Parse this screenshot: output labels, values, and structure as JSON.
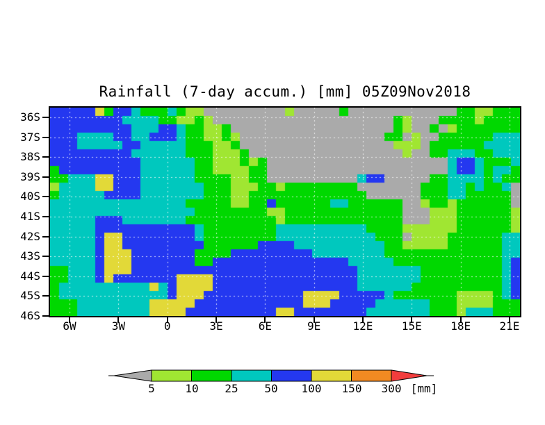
{
  "title": "Rainfall (7-day accum.) [mm] 05Z09Nov2018",
  "map": {
    "y_axis": {
      "labels": [
        "36S",
        "37S",
        "38S",
        "39S",
        "40S",
        "41S",
        "42S",
        "43S",
        "44S",
        "45S",
        "46S"
      ]
    },
    "x_axis": {
      "labels": [
        "6W",
        "3W",
        "0",
        "3E",
        "6E",
        "9E",
        "12E",
        "15E",
        "18E",
        "21E"
      ]
    }
  },
  "colorbar": {
    "labels": [
      "5",
      "10",
      "25",
      "50",
      "100",
      "150",
      "300"
    ],
    "unit": "[mm]",
    "segment_colors": [
      "#a0e632",
      "#00d800",
      "#00c8be",
      "#2438f0",
      "#e2d938",
      "#f28a22"
    ],
    "below_min_color": "#aaaaaa",
    "above_max_color": "#f23d3d"
  },
  "chart_data": {
    "type": "heatmap",
    "title": "Rainfall (7-day accum.) [mm] 05Z09Nov2018",
    "valid_time": "05Z09Nov2018",
    "units": "mm",
    "lat_ticks": [
      "36S",
      "37S",
      "38S",
      "39S",
      "40S",
      "41S",
      "42S",
      "43S",
      "44S",
      "45S",
      "46S"
    ],
    "lon_ticks": [
      "6W",
      "3W",
      "0",
      "3E",
      "6E",
      "9E",
      "12E",
      "15E",
      "18E",
      "21E"
    ],
    "thresholds_mm": [
      5,
      10,
      25,
      50,
      100,
      150,
      300
    ],
    "palette": {
      "G": "#aaaaaa",
      "l": "#a0e632",
      "g": "#00d800",
      "c": "#00c8be",
      "b": "#2438f0",
      "y": "#e2d938"
    },
    "palette_levels_mm": {
      "G": "<5",
      "l": "5-10",
      "g": "10-25",
      "c": "25-50",
      "b": "50-100",
      "y": "100-150"
    },
    "grid_rows": 25,
    "grid_cols": 52,
    "grid": [
      "bbbbbygbbcgggcgllGGGGGGGGGlGGGGGgGGGGGGGGGGGGggllggg",
      "bbbbbbbbccccggllglGGGGGGGGGGGGGGGGGGGGglGGGgggglgggg",
      "bbbbbbbbbcccbbcggllgGGGGGGGGGGGGGGGGGGglGGgGlggggggg",
      "bbbccccbbccbbbcggllglGGGGGGGGGGGGGGGGggGlGGggggggccc",
      "bbbcccccbbcccccgggllgGGGGGGGGGGGGGGGGGlllGggggggcccc",
      "bbbbbbbbbccccccggglllgGGGGGGGGGGGGGGGGGlGGggcccggccc",
      "bbbbbbbbbbccccccgglllglgGGGGGGGGGGGGGGGGGGGGcbbcgggc",
      "gbbbbbbbbbccccccggllllggGGGGGGGGGGGGGGGGGGGGcbbcgccg",
      "ggcccyybbbccccccggggllggGGGGGGGGGGcbbGGGGGggccccgcgg",
      "lccccyybbbcccccccggglllgglggggggggGGGGGGGgggccgcggcG",
      "gcccccbbbbcccccccgggllgggggggggggggGGGGGGgggccgggggG",
      "cccccccccccccccgggggllggbggggggccggggggGGlgglggggggG",
      "ccccccccccccccccggggggggllgggggggggggggGGGlllggggggl",
      "cccccbbbcccccccgggggggggglgggggggggggggGGGlllggggggl",
      "cccccbbbbbbbbbbbcggggggggccccccccccggggllllllggggggl",
      "cccccbyybbbbbbbbcggggggggcccccccccccgggGllllggggggcc",
      "cccccbyybbbbbbbbbggggggbbbbccccccccccgglllllggggggcc",
      "cccccbyyybbbbbbbggggbbbbbbbbbccccccccgggggggggggggcc",
      "cccccbyyybbbbbbbggbbbbbbbbbbbbbbbcccccggggggggggggcb",
      "ggcccbyyybbbbbbbbbbbbbbbbbbbbbbbbbcccccccgggggggggcb",
      "ggcccbybbbbbbbyyyybbbbbbbbbbbbbbbbcccccccgggggggggcb",
      "gccccccccccycbyyyybbbbbbbbbbbbbbbbccccccggggggggggcb",
      "gccccccccccccbyyybbbbbbbbbbbyyyybbbbbcgggggggllllgcb",
      "gggccccccccyyyyybbbbbbbbbbbbyyybbbbbccccccgggllllggg",
      "gggccccccccyyyybbbbbbbbbbyybbbbbbbbcccccccggglcccggg"
    ],
    "gridlines": {
      "style": "dashed-white",
      "lon_deg": [
        -6,
        -3,
        0,
        3,
        6,
        9,
        12,
        15,
        18,
        21
      ],
      "lat_deg": [
        -36,
        -37,
        -38,
        -39,
        -40,
        -41,
        -42,
        -43,
        -44,
        -45
      ]
    }
  }
}
